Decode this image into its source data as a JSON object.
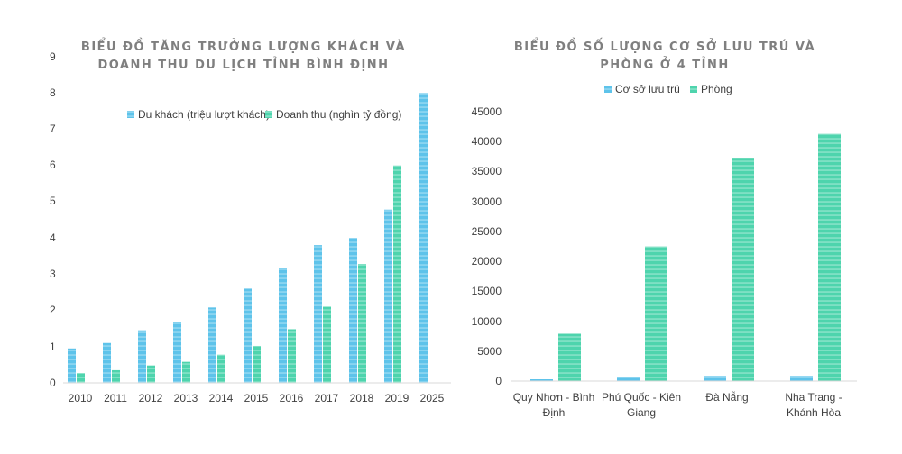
{
  "colors": {
    "series_blue": "#5ec3ea",
    "series_green": "#4ed4ad",
    "axis": "#d9d9d9",
    "text": "#404040",
    "title": "#7f7f7f"
  },
  "chart_data": [
    {
      "type": "bar",
      "title_lines": [
        "BIỂU ĐỒ TĂNG TRƯỞNG LƯỢNG KHÁCH VÀ",
        "DOANH THU DU LỊCH TỈNH BÌNH ĐỊNH"
      ],
      "categories": [
        "2010",
        "2011",
        "2012",
        "2013",
        "2014",
        "2015",
        "2016",
        "2017",
        "2018",
        "2019",
        "2025"
      ],
      "series": [
        {
          "name": "Du khách (triệu lượt khách)",
          "values": [
            0.95,
            1.1,
            1.45,
            1.68,
            2.08,
            2.6,
            3.18,
            3.8,
            4.0,
            4.78,
            8.0
          ]
        },
        {
          "name": "Doanh thu (nghìn tỷ đồng)",
          "values": [
            0.27,
            0.35,
            0.48,
            0.58,
            0.78,
            1.02,
            1.48,
            2.1,
            3.28,
            6.0,
            null
          ]
        }
      ],
      "ylim": [
        0,
        9
      ],
      "yticks": [
        "0",
        "1",
        "2",
        "3",
        "4",
        "5",
        "6",
        "7",
        "8",
        "9"
      ],
      "grid": false,
      "legend": "top-right"
    },
    {
      "type": "bar",
      "title_lines": [
        "BIỂU ĐỒ SỐ LƯỢNG CƠ SỞ LƯU TRÚ VÀ",
        "PHÒNG Ở 4 TỈNH"
      ],
      "categories": [
        [
          "Quy Nhơn - Bình",
          "Định"
        ],
        [
          "Phú Quốc - Kiên",
          "Giang"
        ],
        [
          "Đà Nẵng"
        ],
        [
          "Nha Trang -",
          "Khánh Hòa"
        ]
      ],
      "series": [
        {
          "name": "Cơ sở lưu trú",
          "values": [
            300,
            700,
            850,
            850
          ]
        },
        {
          "name": "Phòng",
          "values": [
            7900,
            22500,
            37300,
            41300
          ]
        }
      ],
      "ylim": [
        0,
        45000
      ],
      "yticks": [
        "0",
        "5000",
        "10000",
        "15000",
        "20000",
        "25000",
        "30000",
        "35000",
        "40000",
        "45000"
      ],
      "grid": false,
      "legend": "top"
    }
  ]
}
